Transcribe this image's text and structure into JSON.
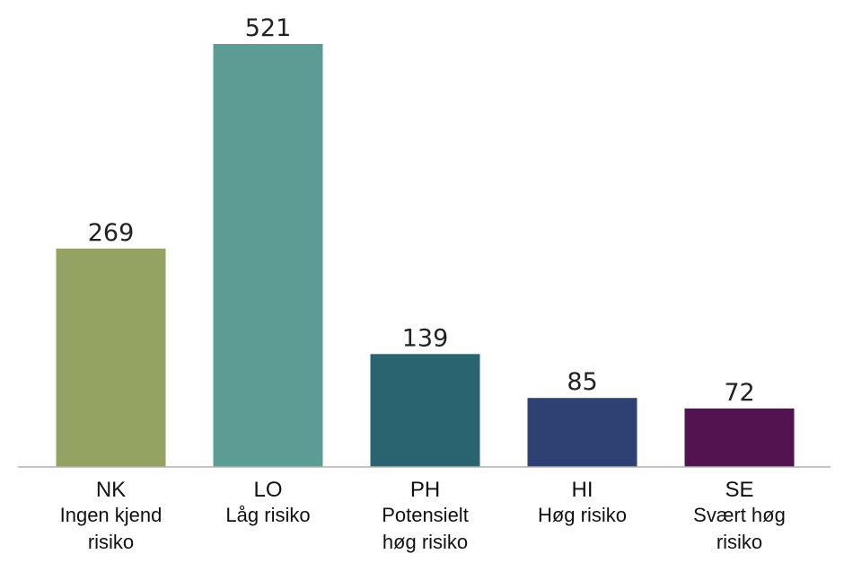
{
  "chart_data": {
    "type": "bar",
    "categories": [
      "NK",
      "LO",
      "PH",
      "HI",
      "SE"
    ],
    "category_descriptions": [
      [
        "Ingen kjend",
        "risiko"
      ],
      [
        "Låg risiko"
      ],
      [
        "Potensielt",
        "høg risiko"
      ],
      [
        "Høg risiko"
      ],
      [
        "Svært høg",
        "risiko"
      ]
    ],
    "values": [
      269,
      521,
      139,
      85,
      72
    ],
    "colors": [
      "#95a362",
      "#5d9c94",
      "#2a6470",
      "#2e4172",
      "#531250"
    ],
    "axis_color": "#b0b0b0",
    "grid": false,
    "legend": "none"
  }
}
